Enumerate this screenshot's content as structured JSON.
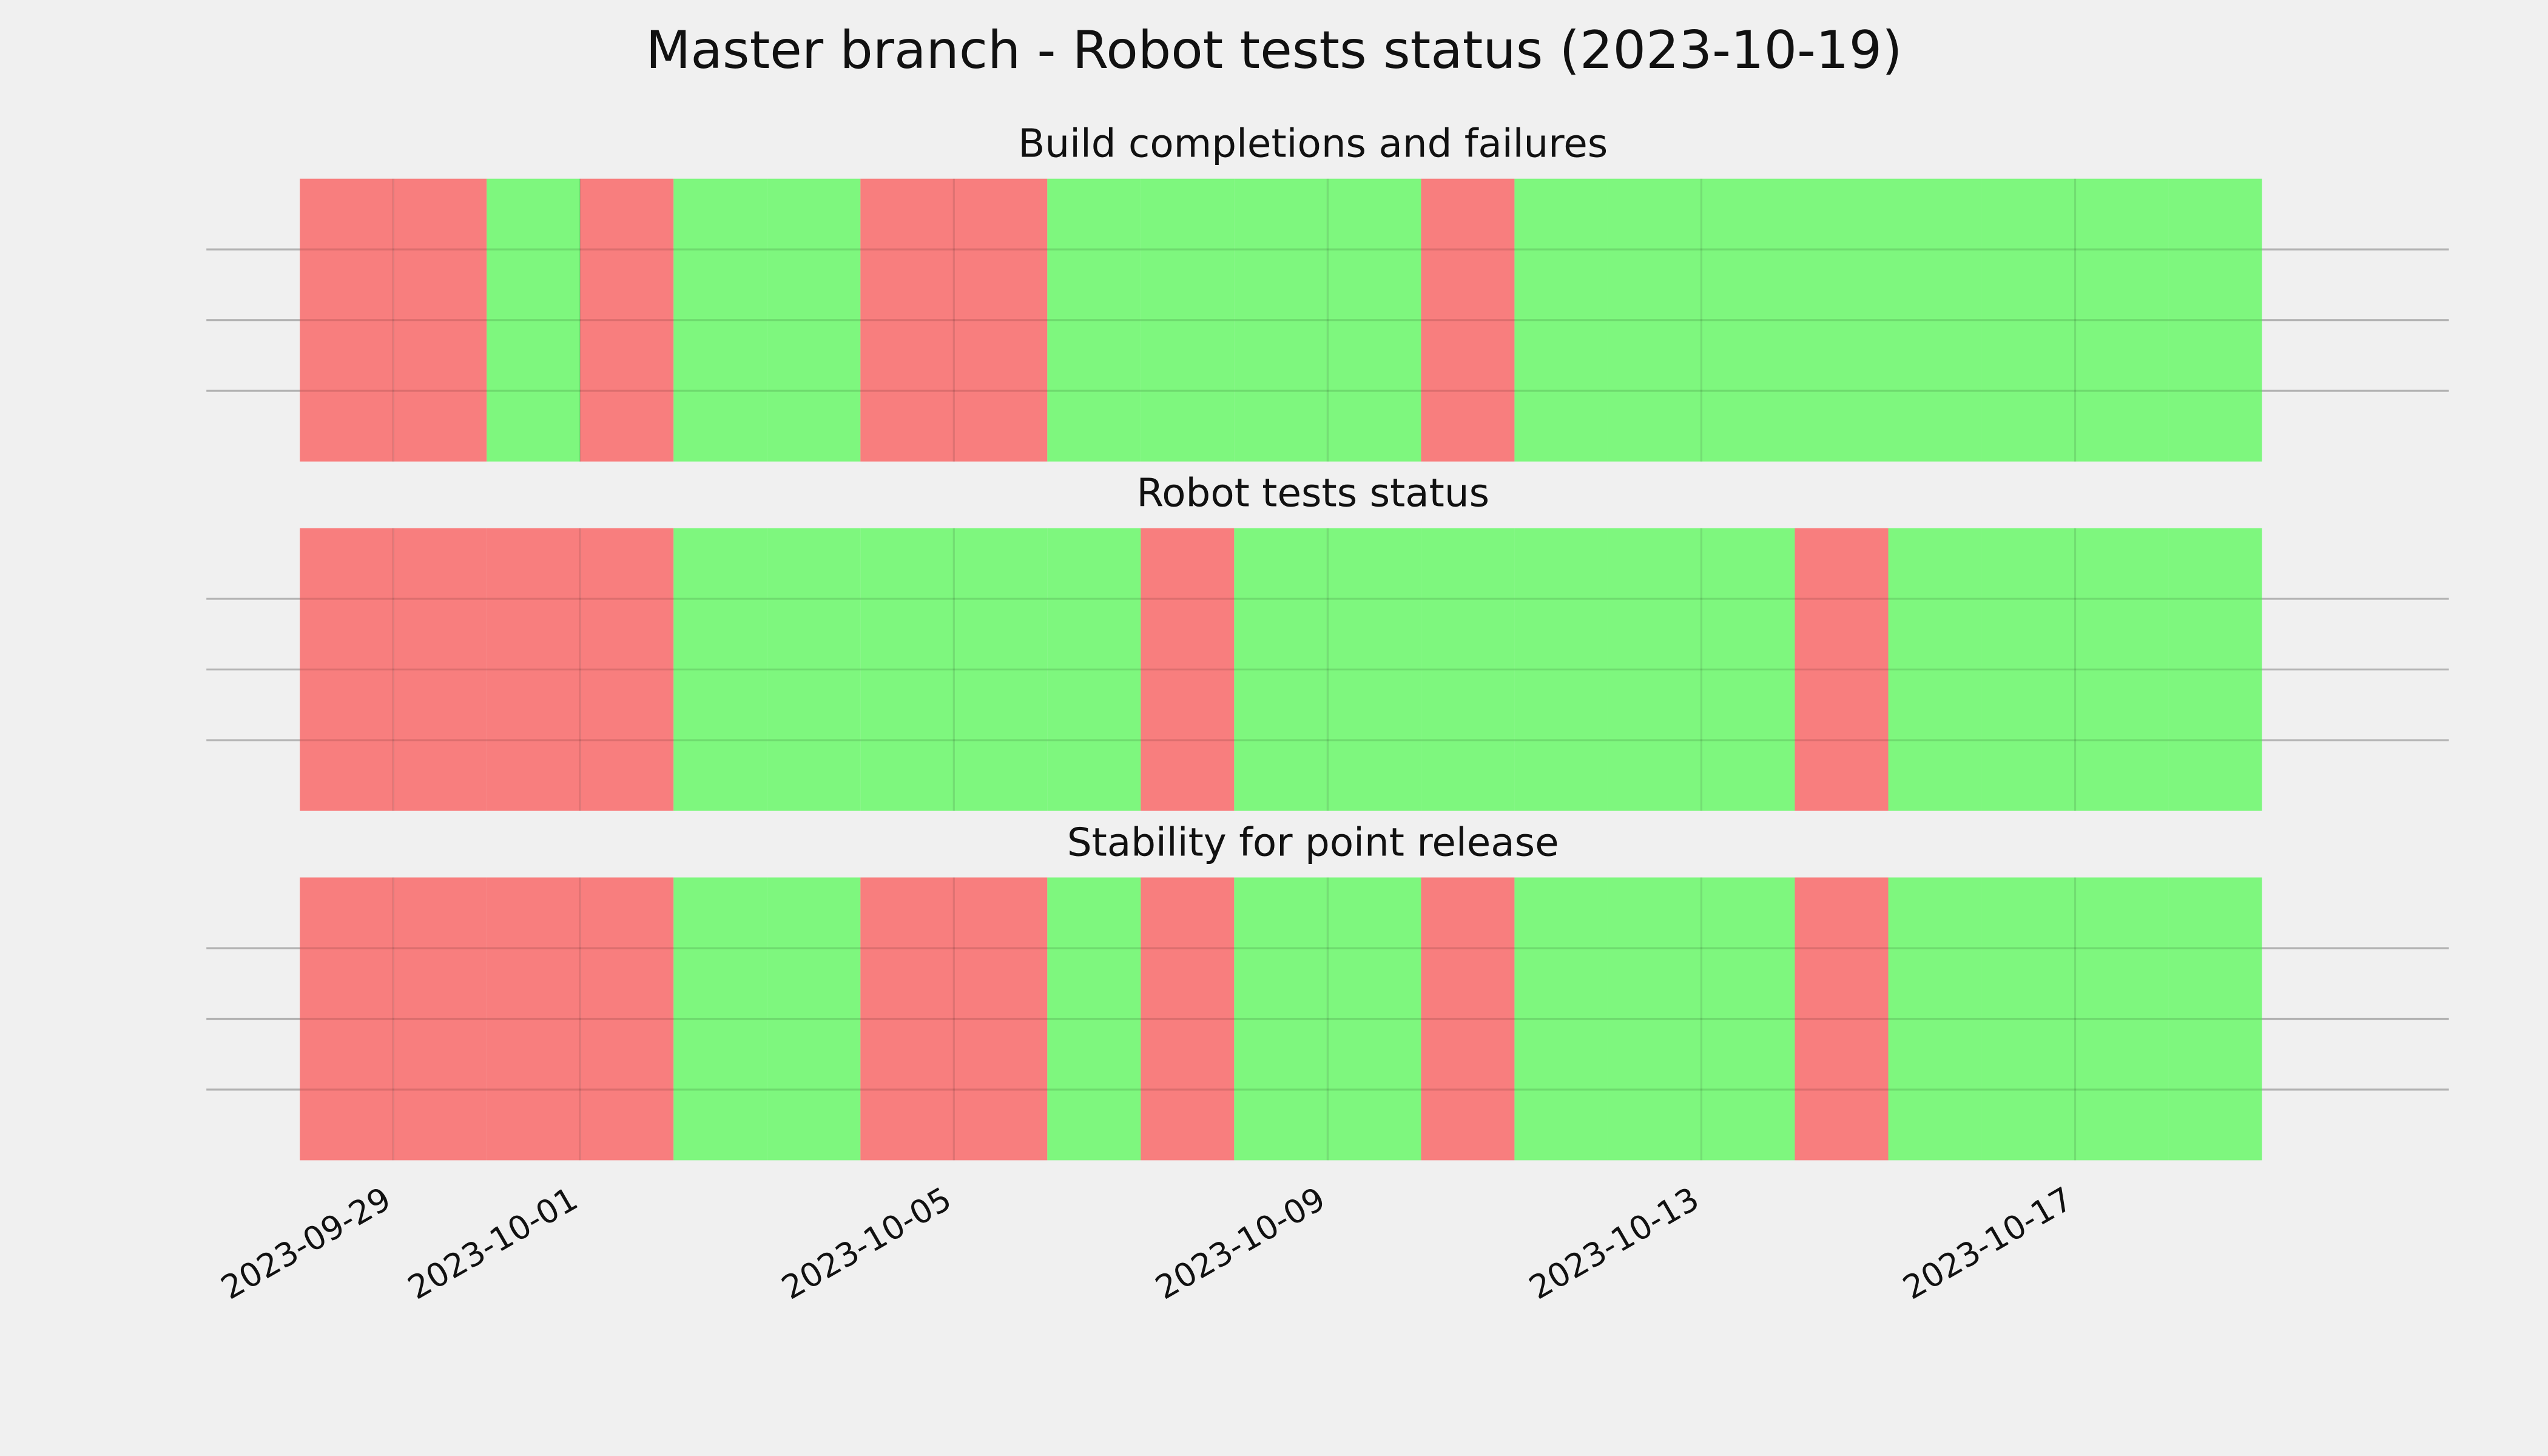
{
  "chart_data": [
    {
      "type": "status",
      "suptitle": "Master branch - Robot tests status (2023-10-19)",
      "title": "Build completions and failures",
      "x": [
        "2023-09-28",
        "2023-09-29",
        "2023-09-30",
        "2023-10-01",
        "2023-10-02",
        "2023-10-03",
        "2023-10-04",
        "2023-10-05",
        "2023-10-06",
        "2023-10-07",
        "2023-10-08",
        "2023-10-09",
        "2023-10-10",
        "2023-10-11",
        "2023-10-12",
        "2023-10-13",
        "2023-10-14",
        "2023-10-15",
        "2023-10-16",
        "2023-10-17",
        "2023-10-18"
      ],
      "values": [
        0,
        0,
        1,
        0,
        1,
        1,
        0,
        0,
        1,
        1,
        1,
        1,
        0,
        1,
        1,
        1,
        1,
        1,
        1,
        1,
        1
      ],
      "status_colors": [
        "#f87777",
        "#77f777"
      ],
      "xlim": [
        "2023-09-27",
        "2023-10-21"
      ],
      "xticks": [
        "2023-09-29",
        "2023-10-01",
        "2023-10-05",
        "2023-10-09",
        "2023-10-13",
        "2023-10-17"
      ],
      "ylim": [
        0,
        1
      ],
      "yticks": [
        0.25,
        0.5,
        0.75
      ],
      "grid": true
    },
    {
      "type": "status",
      "title": "Robot tests status",
      "x": [
        "2023-09-28",
        "2023-09-29",
        "2023-09-30",
        "2023-10-01",
        "2023-10-02",
        "2023-10-03",
        "2023-10-04",
        "2023-10-05",
        "2023-10-06",
        "2023-10-07",
        "2023-10-08",
        "2023-10-09",
        "2023-10-10",
        "2023-10-11",
        "2023-10-12",
        "2023-10-13",
        "2023-10-14",
        "2023-10-15",
        "2023-10-16",
        "2023-10-17",
        "2023-10-18"
      ],
      "values": [
        0,
        0,
        0,
        0,
        1,
        1,
        1,
        1,
        1,
        0,
        1,
        1,
        1,
        1,
        1,
        1,
        0,
        1,
        1,
        1,
        1
      ],
      "status_colors": [
        "#f87777",
        "#77f777"
      ],
      "xlim": [
        "2023-09-27",
        "2023-10-21"
      ],
      "xticks": [
        "2023-09-29",
        "2023-10-01",
        "2023-10-05",
        "2023-10-09",
        "2023-10-13",
        "2023-10-17"
      ],
      "ylim": [
        0,
        1
      ],
      "yticks": [
        0.25,
        0.5,
        0.75
      ],
      "grid": true
    },
    {
      "type": "status",
      "title": "Stability for point release",
      "x": [
        "2023-09-28",
        "2023-09-29",
        "2023-09-30",
        "2023-10-01",
        "2023-10-02",
        "2023-10-03",
        "2023-10-04",
        "2023-10-05",
        "2023-10-06",
        "2023-10-07",
        "2023-10-08",
        "2023-10-09",
        "2023-10-10",
        "2023-10-11",
        "2023-10-12",
        "2023-10-13",
        "2023-10-14",
        "2023-10-15",
        "2023-10-16",
        "2023-10-17",
        "2023-10-18"
      ],
      "values": [
        0,
        0,
        0,
        0,
        1,
        1,
        0,
        0,
        1,
        0,
        1,
        1,
        0,
        1,
        1,
        1,
        0,
        1,
        1,
        1,
        1
      ],
      "status_colors": [
        "#f87777",
        "#77f777"
      ],
      "xlim": [
        "2023-09-27",
        "2023-10-21"
      ],
      "xticks": [
        "2023-09-29",
        "2023-10-01",
        "2023-10-05",
        "2023-10-09",
        "2023-10-13",
        "2023-10-17"
      ],
      "ylim": [
        0,
        1
      ],
      "yticks": [
        0.25,
        0.5,
        0.75
      ],
      "grid": true,
      "show_xtick_labels": true
    }
  ]
}
